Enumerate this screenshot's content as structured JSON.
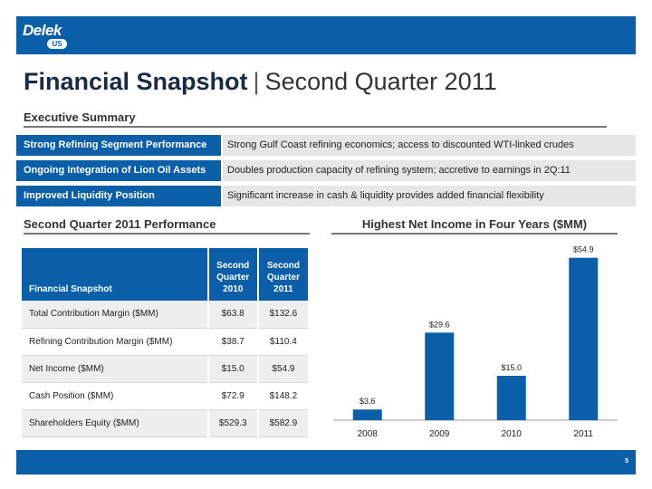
{
  "logo": {
    "word": "Delek",
    "badge": "US"
  },
  "title": {
    "main": "Financial Snapshot",
    "separator": "|",
    "sub": "Second Quarter 2011"
  },
  "executive_summary": {
    "heading": "Executive Summary",
    "items": [
      {
        "label": "Strong Refining Segment Performance",
        "description": "Strong Gulf Coast refining economics; access to discounted WTI-linked crudes"
      },
      {
        "label": "Ongoing Integration of Lion Oil Assets",
        "description": "Doubles production capacity of refining system; accretive to earnings in 2Q:11"
      },
      {
        "label": "Improved Liquidity Position",
        "description": "Significant increase in cash & liquidity provides added financial flexibility"
      }
    ]
  },
  "performance": {
    "heading": "Second Quarter 2011 Performance",
    "table": {
      "headers": [
        "Financial Snapshot",
        "Second Quarter 2010",
        "Second Quarter 2011"
      ],
      "rows": [
        [
          "Total Contribution Margin ($MM)",
          "$63.8",
          "$132.6"
        ],
        [
          "Refining Contribution Margin ($MM)",
          "$38.7",
          "$110.4"
        ],
        [
          "Net Income ($MM)",
          "$15.0",
          "$54.9"
        ],
        [
          "Cash Position ($MM)",
          "$72.9",
          "$148.2"
        ],
        [
          "Shareholders Equity ($MM)",
          "$529.3",
          "$582.9"
        ]
      ]
    }
  },
  "net_income_chart": {
    "heading": "Highest Net Income in Four Years ($MM)"
  },
  "chart_data": {
    "type": "bar",
    "title": "Highest Net Income in Four Years ($MM)",
    "categories": [
      "2008",
      "2009",
      "2010",
      "2011"
    ],
    "values": [
      3.6,
      29.6,
      15.0,
      54.9
    ],
    "data_labels": [
      "$3.6",
      "$29.6",
      "$15.0",
      "$54.9"
    ],
    "xlabel": "",
    "ylabel": "",
    "ylim": [
      0,
      60
    ],
    "grid": false,
    "bar_color": "#0b5fa8"
  },
  "footer": {
    "page_number": "5"
  },
  "colors": {
    "brand_blue": "#0b5fa8",
    "row_gray": "#e6e6e6"
  }
}
